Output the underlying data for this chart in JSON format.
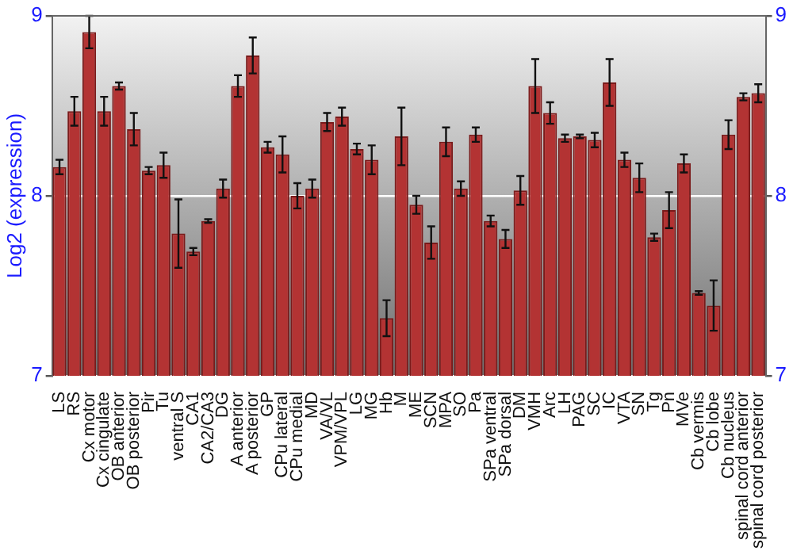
{
  "chart_data": {
    "type": "bar",
    "ylabel": "Log2 (expression)",
    "categories": [
      "LS",
      "RS",
      "Cx motor",
      "Cx cingulate",
      "OB anterior",
      "OB posterior",
      "Pir",
      "Tu",
      "ventral S",
      "CA1",
      "CA2/CA3",
      "DG",
      "A anterior",
      "A posterior",
      "GP",
      "CPu lateral",
      "CPu medial",
      "MD",
      "VA/VL",
      "VPM/VPL",
      "LG",
      "MG",
      "Hb",
      "M",
      "ME",
      "SCN",
      "MPA",
      "SO",
      "Pa",
      "SPa ventral",
      "SPa dorsal",
      "DM",
      "VMH",
      "Arc",
      "LH",
      "PAG",
      "SC",
      "IC",
      "VTA",
      "SN",
      "Tg",
      "Pn",
      "MVe",
      "Cb vermis",
      "Cb lobe",
      "Cb nucleus",
      "spinal cord anterior",
      "spinal cord posterior"
    ],
    "values": [
      8.16,
      8.47,
      8.91,
      8.47,
      8.61,
      8.37,
      8.14,
      8.17,
      7.79,
      7.69,
      7.86,
      8.04,
      8.61,
      8.78,
      8.27,
      8.23,
      8.0,
      8.04,
      8.41,
      8.44,
      8.26,
      8.2,
      7.32,
      8.33,
      7.95,
      7.74,
      8.3,
      8.04,
      8.34,
      7.86,
      7.76,
      8.03,
      8.61,
      8.46,
      8.32,
      8.33,
      8.31,
      8.63,
      8.2,
      8.1,
      7.77,
      7.92,
      8.18,
      7.46,
      7.39,
      8.34,
      8.55,
      8.57
    ],
    "errors": [
      0.04,
      0.08,
      0.09,
      0.08,
      0.02,
      0.09,
      0.02,
      0.07,
      0.19,
      0.02,
      0.01,
      0.05,
      0.06,
      0.1,
      0.03,
      0.1,
      0.07,
      0.05,
      0.05,
      0.05,
      0.03,
      0.08,
      0.1,
      0.16,
      0.05,
      0.09,
      0.08,
      0.04,
      0.04,
      0.03,
      0.05,
      0.08,
      0.15,
      0.06,
      0.02,
      0.01,
      0.04,
      0.13,
      0.04,
      0.08,
      0.02,
      0.1,
      0.05,
      0.01,
      0.14,
      0.08,
      0.02,
      0.05
    ],
    "color": "#b33333",
    "ylim": [
      7,
      9
    ],
    "yticks": [
      7,
      8,
      9
    ],
    "y2lim": [
      7,
      9
    ],
    "y2ticks": [
      7,
      8,
      9
    ],
    "grid": "y",
    "legend": false
  }
}
